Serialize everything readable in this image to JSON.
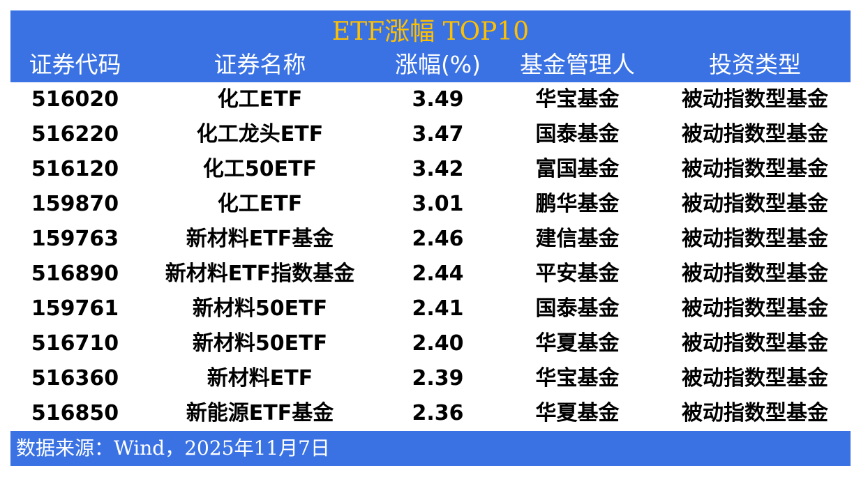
{
  "title": "ETF涨幅 TOP10",
  "headers": [
    "证券代码",
    "证券名称",
    "涨幅(%)",
    "基金管理人",
    "投资类型"
  ],
  "rows": [
    [
      "516020",
      "化工ETF",
      "3.49",
      "华宝基金",
      "被动指数型基金"
    ],
    [
      "516220",
      "化工龙头ETF",
      "3.47",
      "国泰基金",
      "被动指数型基金"
    ],
    [
      "516120",
      "化工50ETF",
      "3.42",
      "富国基金",
      "被动指数型基金"
    ],
    [
      "159870",
      "化工ETF",
      "3.01",
      "鹏华基金",
      "被动指数型基金"
    ],
    [
      "159763",
      "新材料ETF基金",
      "2.46",
      "建信基金",
      "被动指数型基金"
    ],
    [
      "516890",
      "新材料ETF指数基金",
      "2.44",
      "平安基金",
      "被动指数型基金"
    ],
    [
      "159761",
      "新材料50ETF",
      "2.41",
      "国泰基金",
      "被动指数型基金"
    ],
    [
      "516710",
      "新材料50ETF",
      "2.40",
      "华夏基金",
      "被动指数型基金"
    ],
    [
      "516360",
      "新材料ETF",
      "2.39",
      "华宝基金",
      "被动指数型基金"
    ],
    [
      "516850",
      "新能源ETF基金",
      "2.36",
      "华夏基金",
      "被动指数型基金"
    ]
  ],
  "footer": "数据来源：Wind，2025年11月7日",
  "colors": {
    "header_bg": "#3a72e4",
    "title": "#ffc000"
  }
}
